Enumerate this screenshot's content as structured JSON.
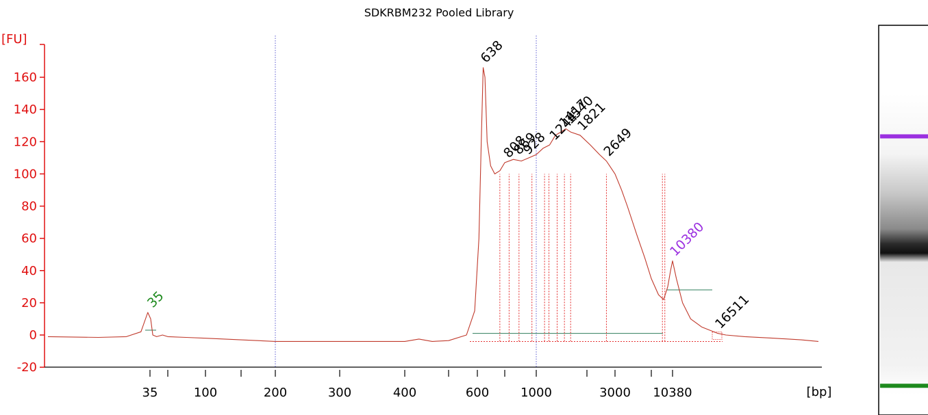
{
  "chart_data": {
    "type": "line",
    "title": "SDKRBM232 Pooled Library",
    "ylabel": "[FU]",
    "xlabel": "[bp]",
    "ylim": [
      -20,
      170
    ],
    "yticks": [
      -20,
      0,
      20,
      40,
      60,
      80,
      100,
      120,
      140,
      160
    ],
    "xticks": [
      {
        "label": "35",
        "bp": 35
      },
      {
        "label": "",
        "bp": 50
      },
      {
        "label": "100",
        "bp": 100
      },
      {
        "label": "",
        "bp": 150
      },
      {
        "label": "200",
        "bp": 200
      },
      {
        "label": "300",
        "bp": 300
      },
      {
        "label": "400",
        "bp": 400
      },
      {
        "label": "",
        "bp": 500
      },
      {
        "label": "600",
        "bp": 600
      },
      {
        "label": "",
        "bp": 800
      },
      {
        "label": "1000",
        "bp": 1000
      },
      {
        "label": "",
        "bp": 2000
      },
      {
        "label": "3000",
        "bp": 3000
      },
      {
        "label": "",
        "bp": 7000
      },
      {
        "label": "10380",
        "bp": 10380
      }
    ],
    "colors": {
      "trace": "#c0392b",
      "axis": "#e01010",
      "ladder_marker": "#1e8a1e",
      "upper_marker": "#9b30e0",
      "reference_line": "#5a5ad0",
      "baseline": "#2e7d5b",
      "black": "#000000"
    },
    "series": [
      {
        "values": [
          [
            18,
            -1
          ],
          [
            25,
            -1.5
          ],
          [
            30,
            -1
          ],
          [
            33,
            2
          ],
          [
            34.5,
            14
          ],
          [
            35.5,
            10
          ],
          [
            37,
            0
          ],
          [
            40,
            -1
          ],
          [
            45,
            0
          ],
          [
            50,
            -1
          ],
          [
            70,
            -1.5
          ],
          [
            100,
            -2
          ],
          [
            150,
            -3
          ],
          [
            200,
            -4
          ],
          [
            300,
            -4
          ],
          [
            400,
            -4
          ],
          [
            430,
            -2.5
          ],
          [
            460,
            -4
          ],
          [
            500,
            -3.5
          ],
          [
            560,
            0
          ],
          [
            590,
            15
          ],
          [
            610,
            60
          ],
          [
            625,
            120
          ],
          [
            638,
            166
          ],
          [
            650,
            160
          ],
          [
            665,
            120
          ],
          [
            690,
            105
          ],
          [
            720,
            100
          ],
          [
            760,
            102
          ],
          [
            800,
            107
          ],
          [
            850,
            109
          ],
          [
            900,
            108
          ],
          [
            950,
            110
          ],
          [
            1000,
            112
          ],
          [
            1100,
            116
          ],
          [
            1200,
            118
          ],
          [
            1300,
            124
          ],
          [
            1400,
            126
          ],
          [
            1500,
            128
          ],
          [
            1600,
            126
          ],
          [
            1821,
            124
          ],
          [
            2100,
            118
          ],
          [
            2400,
            112
          ],
          [
            2649,
            108
          ],
          [
            3000,
            100
          ],
          [
            3500,
            90
          ],
          [
            4000,
            80
          ],
          [
            5000,
            62
          ],
          [
            6000,
            48
          ],
          [
            7000,
            35
          ],
          [
            8000,
            25
          ],
          [
            8800,
            22
          ],
          [
            9500,
            30
          ],
          [
            10000,
            40
          ],
          [
            10380,
            46
          ],
          [
            10800,
            35
          ],
          [
            11500,
            20
          ],
          [
            12500,
            10
          ],
          [
            14000,
            5
          ],
          [
            16511,
            1
          ],
          [
            18000,
            0
          ],
          [
            22000,
            -1
          ],
          [
            30000,
            -2
          ],
          [
            40000,
            -3
          ],
          [
            48000,
            -4
          ]
        ]
      }
    ],
    "peaks": [
      {
        "label": "35",
        "bp": 35,
        "fu": 14,
        "color": "ladder_marker"
      },
      {
        "label": "638",
        "bp": 638,
        "fu": 166,
        "color": "black"
      },
      {
        "label": "808",
        "bp": 808,
        "fu": 107,
        "color": "black"
      },
      {
        "label": "869",
        "bp": 869,
        "fu": 109,
        "color": "black"
      },
      {
        "label": "928",
        "bp": 928,
        "fu": 109,
        "color": "black"
      },
      {
        "label": "1244",
        "bp": 1244,
        "fu": 118,
        "color": "black"
      },
      {
        "label": "1417",
        "bp": 1417,
        "fu": 126,
        "color": "black"
      },
      {
        "label": "1540",
        "bp": 1540,
        "fu": 128,
        "color": "black"
      },
      {
        "label": "1821",
        "bp": 1821,
        "fu": 124,
        "color": "black"
      },
      {
        "label": "2649",
        "bp": 2649,
        "fu": 108,
        "color": "black"
      },
      {
        "label": "10380",
        "bp": 10380,
        "fu": 46,
        "color": "upper_marker"
      },
      {
        "label": "16511",
        "bp": 16511,
        "fu": 1,
        "color": "black"
      }
    ],
    "reference_lines_bp": [
      200,
      1000
    ],
    "region_markers_bp": [
      760,
      825,
      885,
      970,
      1120,
      1190,
      1330,
      1470,
      1600,
      2649,
      8600,
      9000
    ],
    "grid": false,
    "legend": "none"
  },
  "gel": {
    "bands": [
      {
        "color": "#9b30e0",
        "level": 0.285
      },
      {
        "color": "#1e8a1e",
        "level": 0.925
      }
    ]
  }
}
